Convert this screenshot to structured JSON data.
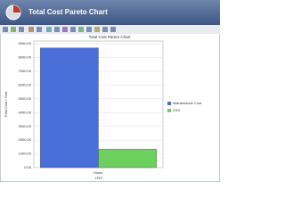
{
  "window": {
    "title": "Total Cost Pareto Chart"
  },
  "chart_data": {
    "type": "bar",
    "title": "Total Cost Pareto Chart",
    "y_label": "Total Cost / Year",
    "x_label": "LRO",
    "categories": [
      "Motor"
    ],
    "series": [
      {
        "name": "Maintenance Cost",
        "color": "#4a6fd8",
        "values": [
          8700
        ]
      },
      {
        "name": "LRO",
        "color": "#6ccf5e",
        "values": [
          1350
        ]
      }
    ],
    "ylim": [
      0,
      9200
    ],
    "yticks": [
      {
        "value": 0,
        "label": "0.00"
      },
      {
        "value": 1000,
        "label": "1000.00"
      },
      {
        "value": 2000,
        "label": "2000.00"
      },
      {
        "value": 3000,
        "label": "3000.00"
      },
      {
        "value": 4000,
        "label": "4000.00"
      },
      {
        "value": 5000,
        "label": "5000.00"
      },
      {
        "value": 6000,
        "label": "6000.00"
      },
      {
        "value": 7000,
        "label": "7000.00"
      },
      {
        "value": 8000,
        "label": "8000.00"
      },
      {
        "value": 9000,
        "label": "9000.00"
      }
    ],
    "grid": true,
    "legend": "right"
  }
}
